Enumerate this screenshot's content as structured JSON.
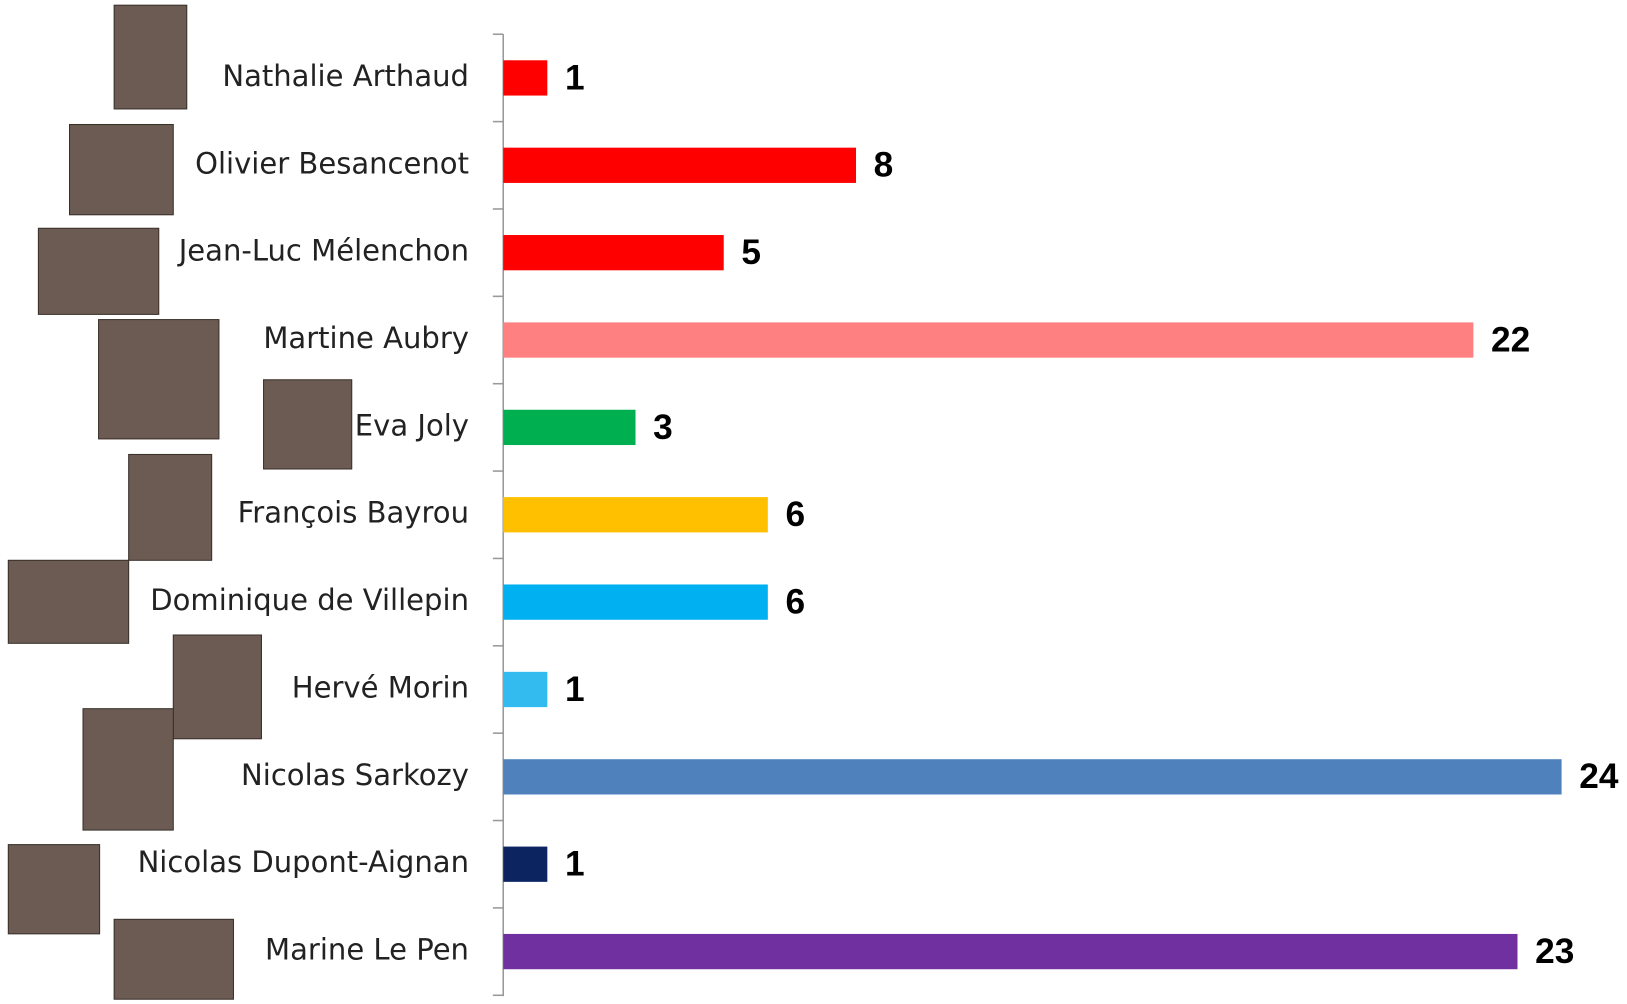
{
  "chart_data": {
    "type": "bar",
    "orientation": "horizontal",
    "categories": [
      "Nathalie Arthaud",
      "Olivier Besancenot",
      "Jean-Luc Mélenchon",
      "Martine Aubry",
      "Eva Joly",
      "François Bayrou",
      "Dominique de Villepin",
      "Hervé Morin",
      "Nicolas Sarkozy",
      "Nicolas Dupont-Aignan",
      "Marine Le Pen"
    ],
    "values": [
      1,
      8,
      5,
      22,
      3,
      6,
      6,
      1,
      24,
      1,
      23
    ],
    "colors": [
      "#ff0000",
      "#ff0000",
      "#ff0000",
      "#ff8080",
      "#00b050",
      "#ffc000",
      "#00b0f0",
      "#33bbf0",
      "#4f81bd",
      "#0c2460",
      "#7030a0"
    ],
    "data_labels": true
  }
}
